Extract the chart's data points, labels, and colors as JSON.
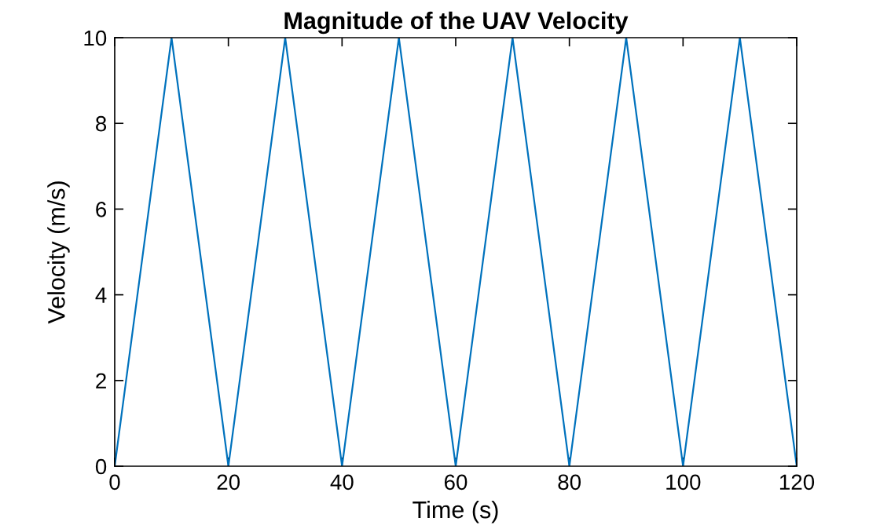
{
  "chart_data": {
    "type": "line",
    "title": "Magnitude of the UAV Velocity",
    "xlabel": "Time (s)",
    "ylabel": "Velocity (m/s)",
    "x": [
      0,
      10,
      20,
      30,
      40,
      50,
      60,
      70,
      80,
      90,
      100,
      110,
      120
    ],
    "series": [
      {
        "color": "#0072bd",
        "values": [
          0,
          10,
          0,
          10,
          0,
          10,
          0,
          10,
          0,
          10,
          0,
          10,
          0
        ]
      }
    ],
    "xlim": [
      0,
      120
    ],
    "xticks": [
      0,
      20,
      40,
      60,
      80,
      100,
      120
    ],
    "ylim": [
      0,
      10
    ],
    "yticks": [
      0,
      2,
      4,
      6,
      8,
      10
    ],
    "grid": false,
    "legend": false,
    "marker": "none",
    "line_style": "solid"
  }
}
